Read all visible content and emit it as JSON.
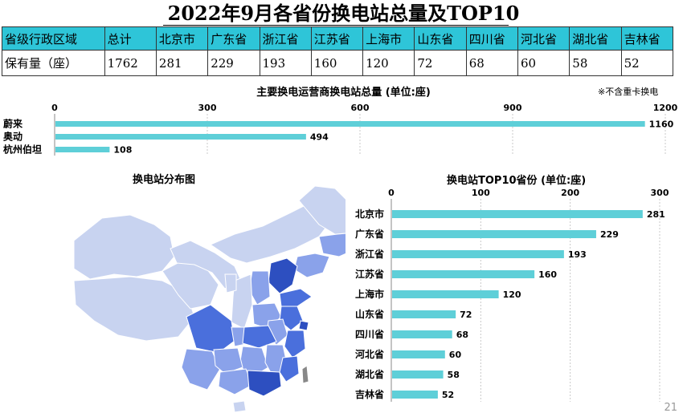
{
  "title": "2022年9月各省份换电站总量及TOP10",
  "table": {
    "header_label": "省级行政区域",
    "value_label": "保有量（座）",
    "total_label": "总计",
    "total_value": "1762",
    "provinces": [
      "北京市",
      "广东省",
      "浙江省",
      "江苏省",
      "上海市",
      "山东省",
      "四川省",
      "河北省",
      "湖北省",
      "吉林省"
    ],
    "values": [
      "281",
      "229",
      "193",
      "160",
      "120",
      "72",
      "68",
      "60",
      "58",
      "52"
    ]
  },
  "operator_chart_note": "※不含重卡换电",
  "map": {
    "title": "换电站分布图"
  },
  "page_number": "21",
  "colors": {
    "bar": "#5ecfd8",
    "table_header": "#2ec5d8",
    "map_light": "#c8d3f0",
    "map_mid": "#8aa2ea",
    "map_dark": "#4a6fdc",
    "map_darkest": "#2d4fc0"
  },
  "chart_data": [
    {
      "type": "bar",
      "orientation": "horizontal",
      "title": "主要换电运营商换电站总量 (单位:座)",
      "categories": [
        "蔚来",
        "奥动",
        "杭州伯坦"
      ],
      "values": [
        1160,
        494,
        108
      ],
      "xlim": [
        0,
        1200
      ],
      "ticks": [
        "0",
        "300",
        "600",
        "900",
        "1200"
      ],
      "tick_values": [
        0,
        300,
        600,
        900,
        1200
      ],
      "grid": true
    },
    {
      "type": "bar",
      "orientation": "horizontal",
      "title": "换电站TOP10省份 (单位:座)",
      "categories": [
        "北京市",
        "广东省",
        "浙江省",
        "江苏省",
        "上海市",
        "山东省",
        "四川省",
        "河北省",
        "湖北省",
        "吉林省"
      ],
      "values": [
        281,
        229,
        193,
        160,
        120,
        72,
        68,
        60,
        58,
        52
      ],
      "xlim": [
        0,
        300
      ],
      "ticks": [
        "0",
        "100",
        "200",
        "300"
      ],
      "tick_values": [
        0,
        100,
        200,
        300
      ],
      "grid": true
    }
  ]
}
